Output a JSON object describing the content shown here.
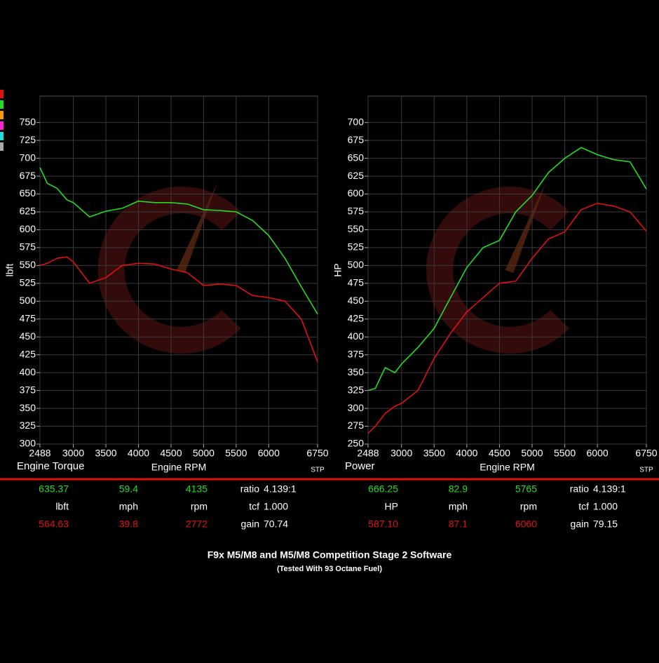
{
  "chart_data": [
    {
      "type": "line",
      "title": "Engine Torque",
      "ylabel": "lbft",
      "xlabel": "Engine RPM",
      "note": "STP",
      "x": [
        2488,
        2600,
        2750,
        2900,
        3000,
        3250,
        3500,
        3750,
        4000,
        4250,
        4500,
        4750,
        5000,
        5250,
        5500,
        5750,
        6000,
        6250,
        6500,
        6750
      ],
      "series": [
        {
          "color": "#22dd22",
          "values": [
            687,
            665,
            658,
            642,
            638,
            618,
            626,
            630,
            640,
            638,
            638,
            636,
            628,
            627,
            625,
            613,
            592,
            560,
            520,
            482
          ]
        },
        {
          "color": "#e01010",
          "values": [
            550,
            553,
            560,
            562,
            555,
            525,
            533,
            550,
            553,
            552,
            545,
            540,
            522,
            524,
            522,
            508,
            505,
            500,
            475,
            415
          ]
        }
      ],
      "xlim": [
        2488,
        6750
      ],
      "xticks": [
        2488,
        3000,
        3500,
        4000,
        4500,
        5000,
        5500,
        6000,
        6750
      ],
      "ylim": [
        300,
        787
      ],
      "yticks": [
        300,
        325,
        350,
        375,
        400,
        425,
        450,
        475,
        500,
        525,
        550,
        575,
        600,
        625,
        650,
        675,
        700,
        725,
        750
      ],
      "grid": true
    },
    {
      "type": "line",
      "title": "Power",
      "ylabel": "HP",
      "xlabel": "Engine RPM",
      "note": "STP",
      "x": [
        2488,
        2600,
        2750,
        2900,
        3000,
        3250,
        3500,
        3750,
        4000,
        4250,
        4500,
        4750,
        5000,
        5250,
        5500,
        5750,
        6000,
        6250,
        6500,
        6750
      ],
      "series": [
        {
          "color": "#22dd22",
          "values": [
            325,
            328,
            357,
            350,
            362,
            385,
            412,
            455,
            497,
            525,
            535,
            575,
            598,
            630,
            650,
            665,
            655,
            648,
            645,
            607
          ]
        },
        {
          "color": "#e01010",
          "values": [
            265,
            275,
            293,
            303,
            307,
            325,
            370,
            405,
            435,
            455,
            475,
            478,
            510,
            537,
            547,
            578,
            587,
            583,
            575,
            548
          ]
        }
      ],
      "xlim": [
        2488,
        6750
      ],
      "xticks": [
        2488,
        3000,
        3500,
        4000,
        4500,
        5000,
        5500,
        6000,
        6750
      ],
      "ylim": [
        250,
        737
      ],
      "yticks": [
        250,
        275,
        300,
        325,
        350,
        375,
        400,
        425,
        450,
        475,
        500,
        525,
        550,
        575,
        600,
        625,
        650,
        675,
        700
      ],
      "grid": true
    }
  ],
  "readout": [
    [
      [
        "635.37",
        "59.4",
        "4135",
        "ratio",
        "4.139:1"
      ],
      [
        "lbft",
        "mph",
        "rpm",
        "tcf",
        "1.000"
      ],
      [
        "564.63",
        "39.8",
        "2772",
        "gain",
        "70.74"
      ]
    ],
    [
      [
        "666.25",
        "82.9",
        "5765",
        "ratio",
        "4.139:1"
      ],
      [
        "HP",
        "mph",
        "rpm",
        "tcf",
        "1.000"
      ],
      [
        "587.10",
        "87.1",
        "6060",
        "gain",
        "79.15"
      ]
    ]
  ],
  "caption": {
    "title": "F9x M5/M8 and M5/M8 Competition Stage 2 Software",
    "subtitle": "(Tested With 93 Octane Fuel)"
  }
}
